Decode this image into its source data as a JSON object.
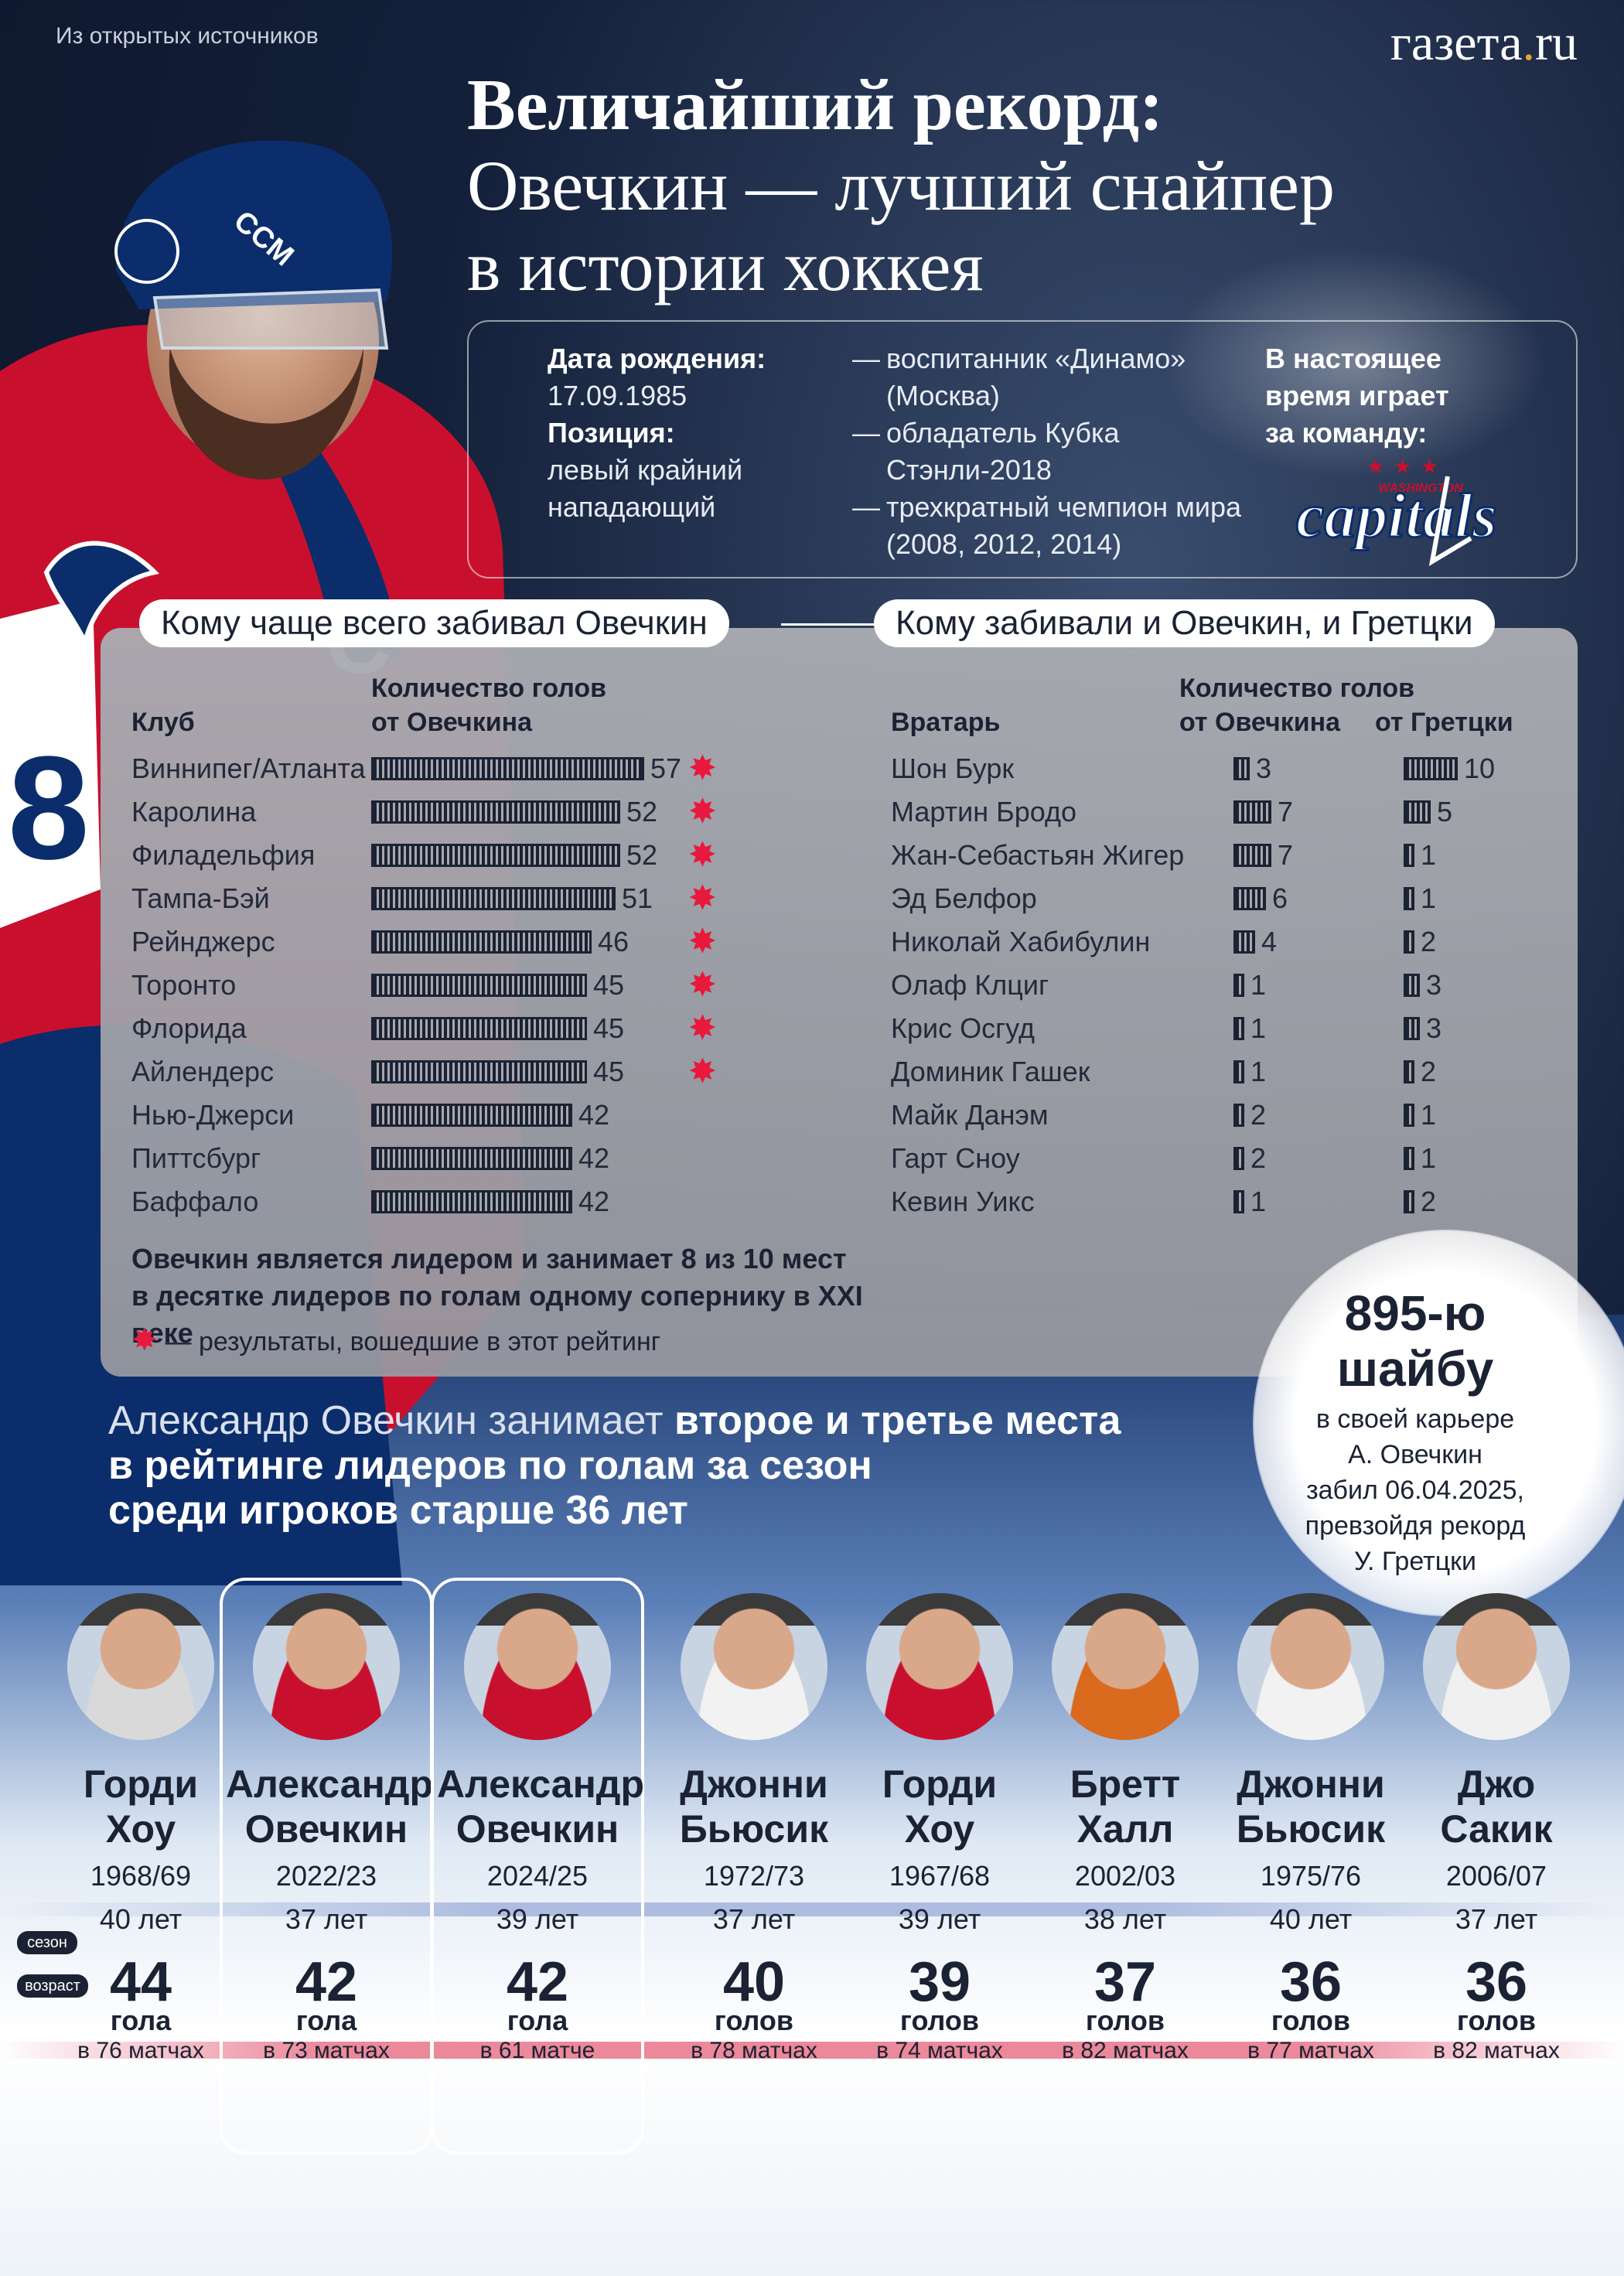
{
  "source": "Из открытых источников",
  "logo": {
    "main": "газета",
    "dot": ".",
    "tld": "ru"
  },
  "title": {
    "line1": "Величайший рекорд:",
    "line2": "Овечкин — лучший снайпер",
    "line3": "в истории хоккея"
  },
  "bio": {
    "birth_label": "Дата рождения:",
    "birth_value": "17.09.1985",
    "position_label": "Позиция:",
    "position_value1": "левый крайний",
    "position_value2": "нападающий",
    "achievements": [
      {
        "dash": "—",
        "text": "воспитанник «Динамо»"
      },
      {
        "dash": "",
        "text": "(Москва)"
      },
      {
        "dash": "—",
        "text": "обладатель Кубка"
      },
      {
        "dash": "",
        "text": "Стэнли-2018"
      },
      {
        "dash": "—",
        "text": "трехкратный чемпион мира"
      },
      {
        "dash": "",
        "text": "(2008, 2012, 2014)"
      }
    ],
    "team_line1": "В настоящее",
    "team_line2": "время играет",
    "team_line3": "за команду:",
    "team_logo_top": "WASHINGTON",
    "team_logo_main": "capitals",
    "team_logo_color": "#c8102e",
    "team_logo_star": "★"
  },
  "left_table": {
    "pill": "Кому чаще всего забивал Овечкин",
    "col_club": "Клуб",
    "col_goals1": "Количество голов",
    "col_goals2": "от Овечкина",
    "rows": [
      {
        "club": "Виннипег/Атланта",
        "goals": 57,
        "star": "✸"
      },
      {
        "club": "Каролина",
        "goals": 52,
        "star": "✸"
      },
      {
        "club": "Филадельфия",
        "goals": 52,
        "star": "✸"
      },
      {
        "club": "Тампа-Бэй",
        "goals": 51,
        "star": "✸"
      },
      {
        "club": "Рейнджерс",
        "goals": 46,
        "star": "✸"
      },
      {
        "club": "Торонто",
        "goals": 45,
        "star": "✸"
      },
      {
        "club": "Флорида",
        "goals": 45,
        "star": "✸"
      },
      {
        "club": "Айлендерс",
        "goals": 45,
        "star": "✸"
      },
      {
        "club": "Нью-Джерси",
        "goals": 42,
        "star": ""
      },
      {
        "club": "Питтсбург",
        "goals": 42,
        "star": ""
      },
      {
        "club": "Баффало",
        "goals": 42,
        "star": ""
      }
    ],
    "note_line1": "Овечкин является лидером и занимает 8 из 10 мест",
    "note_line2": "в десятке лидеров по голам одному сопернику в XXI веке",
    "legend_star": "✸",
    "legend": "— результаты, вошедшие в этот рейтинг"
  },
  "right_table": {
    "pill": "Кому забивали и Овечкин, и Гретцки",
    "col_goalie": "Вратарь",
    "col_goals": "Количество голов",
    "col_ovechkin": "от Овечкина",
    "col_gretzky": "от Гретцки",
    "rows": [
      {
        "goalie": "Шон Бурк",
        "ovechkin": 3,
        "gretzky": 10
      },
      {
        "goalie": "Мартин Бродо",
        "ovechkin": 7,
        "gretzky": 5
      },
      {
        "goalie": "Жан-Себастьян Жигер",
        "ovechkin": 7,
        "gretzky": 1
      },
      {
        "goalie": "Эд Белфор",
        "ovechkin": 6,
        "gretzky": 1
      },
      {
        "goalie": "Николай Хабибулин",
        "ovechkin": 4,
        "gretzky": 2
      },
      {
        "goalie": "Олаф Клциг",
        "ovechkin": 1,
        "gretzky": 3
      },
      {
        "goalie": "Крис Осгуд",
        "ovechkin": 1,
        "gretzky": 3
      },
      {
        "goalie": "Доминик Гашек",
        "ovechkin": 1,
        "gretzky": 2
      },
      {
        "goalie": "Майк Данэм",
        "ovechkin": 2,
        "gretzky": 1
      },
      {
        "goalie": "Гарт Сноу",
        "ovechkin": 2,
        "gretzky": 1
      },
      {
        "goalie": "Кевин Уикс",
        "ovechkin": 1,
        "gretzky": 2
      }
    ]
  },
  "bubble": {
    "line1": "895-ю",
    "line2": "шайбу",
    "text1": "в своей карьере",
    "text2": "А. Овечкин",
    "text3": "забил 06.04.2025,",
    "text4": "превзойдя рекорд",
    "text5": "У. Гретцки"
  },
  "season_head": {
    "light": "Александр Овечкин занимает ",
    "bold1": "второе и третье места",
    "bold2": "в рейтинге лидеров по голам за сезон",
    "bold3": "среди игроков старше 36 лет"
  },
  "tags": {
    "season": "сезон",
    "age": "возраст"
  },
  "players": [
    {
      "first": "Горди",
      "last": "Хоу",
      "season": "1968/69",
      "age": "40 лет",
      "goals": "44",
      "goals_word": "гола",
      "matches": "в 76 матчах",
      "highlight": false,
      "jersey": "#d9d9d9"
    },
    {
      "first": "Александр",
      "last": "Овечкин",
      "season": "2022/23",
      "age": "37 лет",
      "goals": "42",
      "goals_word": "гола",
      "matches": "в 73 матчах",
      "highlight": true,
      "jersey": "#c8102e"
    },
    {
      "first": "Александр",
      "last": "Овечкин",
      "season": "2024/25",
      "age": "39 лет",
      "goals": "42",
      "goals_word": "гола",
      "matches": "в 61 матче",
      "highlight": true,
      "jersey": "#c8102e"
    },
    {
      "first": "Джонни",
      "last": "Бьюсик",
      "season": "1972/73",
      "age": "37 лет",
      "goals": "40",
      "goals_word": "голов",
      "matches": "в 78 матчах",
      "highlight": false,
      "jersey": "#f2f2f2"
    },
    {
      "first": "Горди",
      "last": "Хоу",
      "season": "1967/68",
      "age": "39 лет",
      "goals": "39",
      "goals_word": "голов",
      "matches": "в 74 матчах",
      "highlight": false,
      "jersey": "#c8102e"
    },
    {
      "first": "Бретт",
      "last": "Халл",
      "season": "2002/03",
      "age": "38 лет",
      "goals": "37",
      "goals_word": "голов",
      "matches": "в 82 матчах",
      "highlight": false,
      "jersey": "#d96a1e"
    },
    {
      "first": "Джонни",
      "last": "Бьюсик",
      "season": "1975/76",
      "age": "40 лет",
      "goals": "36",
      "goals_word": "голов",
      "matches": "в 77 матчах",
      "highlight": false,
      "jersey": "#f2f2f2"
    },
    {
      "first": "Джо",
      "last": "Сакик",
      "season": "2006/07",
      "age": "37 лет",
      "goals": "36",
      "goals_word": "голов",
      "matches": "в 82 матчах",
      "highlight": false,
      "jersey": "#f0f0f0"
    }
  ],
  "colors": {
    "accent_red": "#e8193c",
    "dark": "#1b2233",
    "logo_dot": "#e8a234"
  }
}
